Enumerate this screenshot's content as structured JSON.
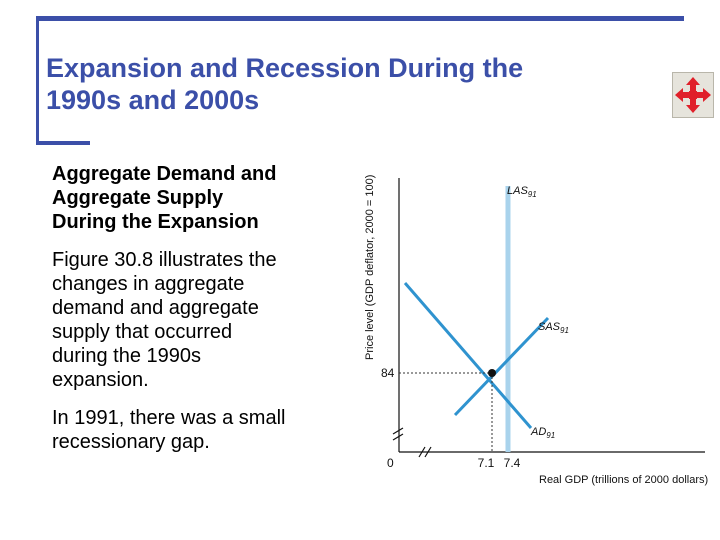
{
  "slide": {
    "title_line1": "Expansion and Recession During the",
    "title_line2": "1990s and 2000s",
    "subhead_line1": "Aggregate Demand and",
    "subhead_line2": "Aggregate Supply",
    "subhead_line3": "During the Expansion",
    "para1": [
      "Figure 30.8 illustrates the",
      "changes in aggregate",
      "demand and aggregate",
      "supply that occurred",
      "during the 1990s",
      "expansion."
    ],
    "para2": [
      "In 1991, there was a small",
      "recessionary gap."
    ]
  },
  "nav_icon": "move-arrows-icon",
  "colors": {
    "title": "#3b4fa8",
    "frame": "#3b4fa8",
    "demand": "#2f93cf",
    "supply": "#2f93cf",
    "las": "#a9d3ec"
  },
  "chart_data": {
    "type": "line",
    "xlabel": "Real GDP (trillions of 2000 dollars)",
    "ylabel": "Price level (GDP deflator, 2000 = 100)",
    "origin_label": "0",
    "x_ticks": [
      "7.1",
      "7.4"
    ],
    "y_ticks": [
      "84"
    ],
    "equilibrium": {
      "x": 7.1,
      "y": 84
    },
    "potential_gdp": 7.4,
    "curves": [
      {
        "label": "LAS",
        "subscript": "91"
      },
      {
        "label": "SAS",
        "subscript": "91"
      },
      {
        "label": "AD",
        "subscript": "91"
      }
    ]
  }
}
